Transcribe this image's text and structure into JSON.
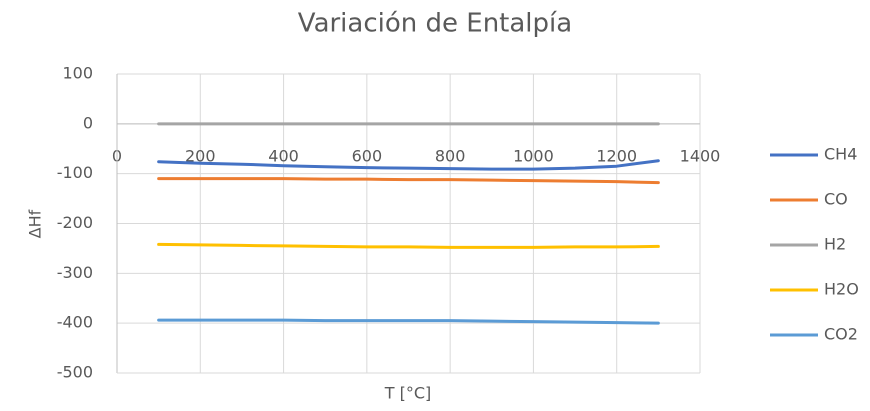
{
  "chart_data": {
    "type": "line",
    "title": "Variación de Entalpía",
    "x_label": "T [°C]",
    "y_label": "ΔHf",
    "x": [
      100,
      200,
      300,
      400,
      500,
      600,
      700,
      800,
      900,
      1000,
      1100,
      1200,
      1300
    ],
    "series": [
      {
        "name": "CH4",
        "color": "#4472c4",
        "values": [
          -76,
          -79,
          -81,
          -84,
          -86,
          -88,
          -89,
          -90,
          -91,
          -91,
          -89,
          -85,
          -74
        ]
      },
      {
        "name": "CO",
        "color": "#ed7d31",
        "values": [
          -110,
          -110,
          -110,
          -110,
          -111,
          -111,
          -112,
          -112,
          -113,
          -114,
          -115,
          -116,
          -118
        ]
      },
      {
        "name": "H2",
        "color": "#a5a5a5",
        "values": [
          0,
          0,
          0,
          0,
          0,
          0,
          0,
          0,
          0,
          0,
          0,
          0,
          0
        ]
      },
      {
        "name": "H2O",
        "color": "#ffc000",
        "values": [
          -242,
          -243,
          -244,
          -245,
          -246,
          -247,
          -247,
          -248,
          -248,
          -248,
          -247,
          -247,
          -246
        ]
      },
      {
        "name": "CO2",
        "color": "#5b9bd5",
        "values": [
          -394,
          -394,
          -394,
          -394,
          -395,
          -395,
          -395,
          -395,
          -396,
          -397,
          -398,
          -399,
          -400
        ]
      }
    ],
    "xlim": [
      0,
      1400
    ],
    "xticks": [
      0,
      200,
      400,
      600,
      800,
      1000,
      1200,
      1400
    ],
    "ylim": [
      -500,
      100
    ],
    "yticks": [
      -500,
      -400,
      -300,
      -200,
      -100,
      0,
      100
    ],
    "grid": true,
    "legend": "right"
  }
}
